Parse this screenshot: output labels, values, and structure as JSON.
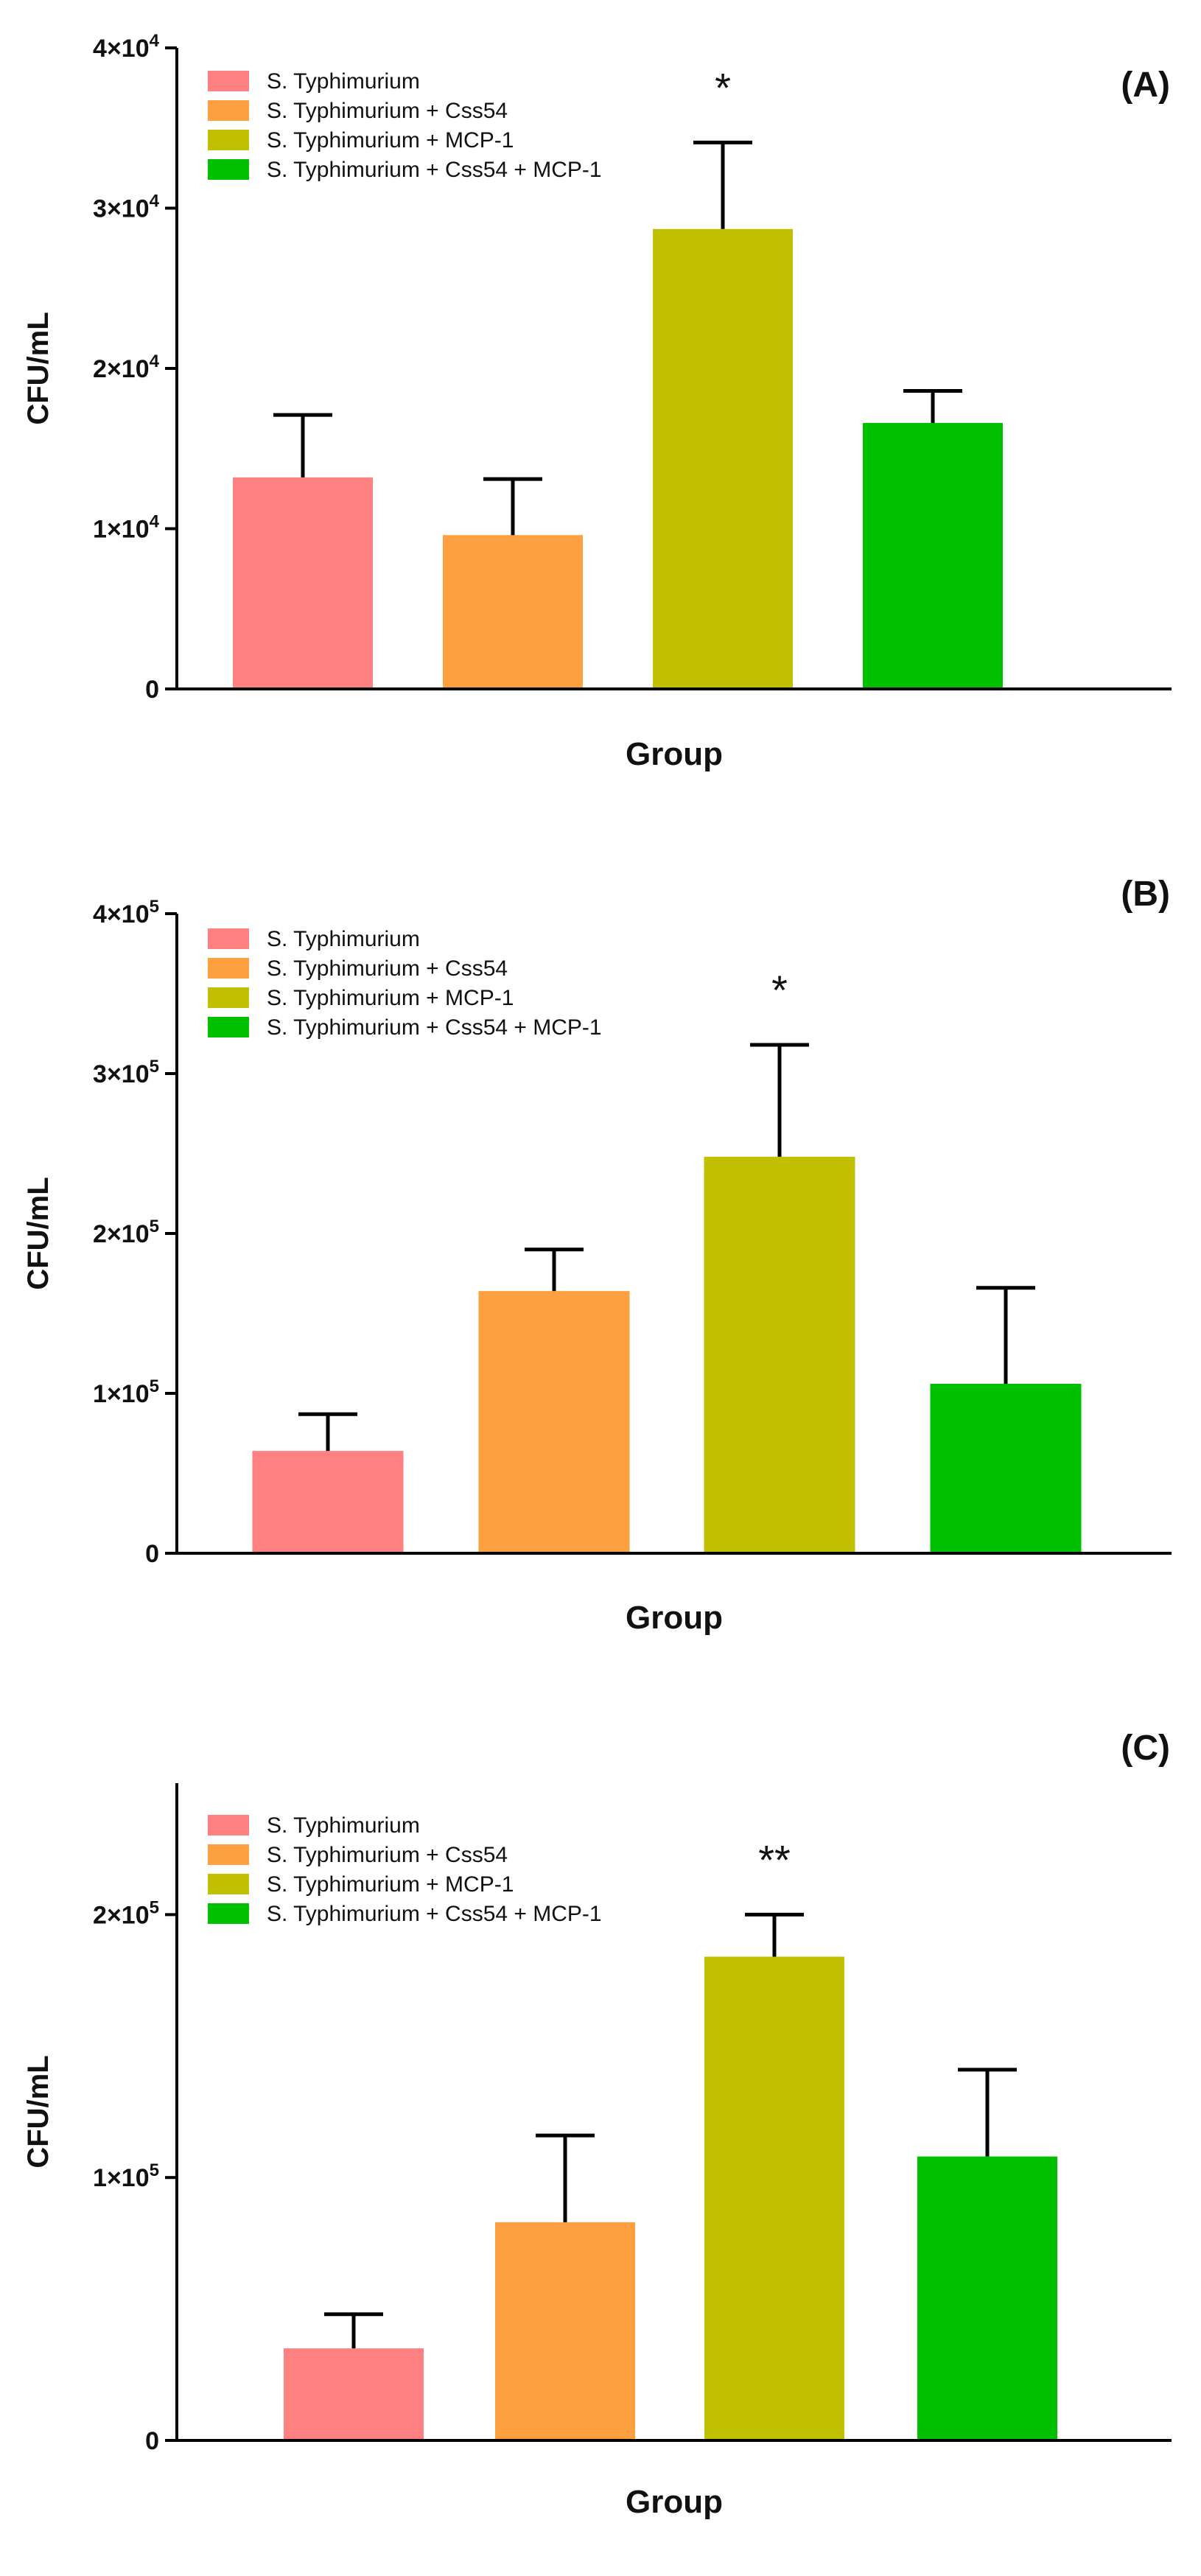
{
  "chart_data": [
    {
      "type": "bar",
      "panel_label": "(A)",
      "categories": [
        "S. Typhimurium",
        "S. Typhimurium + Css54",
        "S. Typhimurium + MCP-1",
        "S. Typhimurium + Css54 + MCP-1"
      ],
      "values": [
        13200,
        9600,
        28700,
        16600
      ],
      "errors": [
        3900,
        3500,
        5400,
        2000
      ],
      "significance": [
        "",
        "",
        "*",
        ""
      ],
      "colors": [
        "#ff8080",
        "#ffa040",
        "#c0c000",
        "#00c000"
      ],
      "xlabel": "Group",
      "ylabel": "CFU/mL",
      "ylim": [
        0,
        40000
      ],
      "y_ticks": [
        0,
        10000,
        20000,
        30000,
        40000
      ],
      "y_tick_mantissa": [
        "0",
        "1×10",
        "2×10",
        "3×10",
        "4×10"
      ],
      "y_tick_exponent": [
        "",
        "4",
        "4",
        "4",
        "4"
      ],
      "legend": [
        "S. Typhimurium",
        "S. Typhimurium + Css54",
        "S. Typhimurium + MCP-1",
        "S. Typhimurium + Css54 + MCP-1"
      ],
      "legend_position": "top-left",
      "grid": false
    },
    {
      "type": "bar",
      "panel_label": "(B)",
      "categories": [
        "S. Typhimurium",
        "S. Typhimurium + Css54",
        "S. Typhimurium + MCP-1",
        "S. Typhimurium + Css54 + MCP-1"
      ],
      "values": [
        64000,
        164000,
        248000,
        106000
      ],
      "errors": [
        23000,
        26000,
        70000,
        60000
      ],
      "significance": [
        "",
        "",
        "*",
        ""
      ],
      "colors": [
        "#ff8080",
        "#ffa040",
        "#c0c000",
        "#00c000"
      ],
      "xlabel": "Group",
      "ylabel": "CFU/mL",
      "ylim": [
        0,
        400000
      ],
      "y_ticks": [
        0,
        100000,
        200000,
        300000,
        400000
      ],
      "y_tick_mantissa": [
        "0",
        "1×10",
        "2×10",
        "3×10",
        "4×10"
      ],
      "y_tick_exponent": [
        "",
        "5",
        "5",
        "5",
        "5"
      ],
      "legend": [
        "S. Typhimurium",
        "S. Typhimurium + Css54",
        "S. Typhimurium + MCP-1",
        "S. Typhimurium + Css54 + MCP-1"
      ],
      "legend_position": "top-left",
      "grid": false
    },
    {
      "type": "bar",
      "panel_label": "(C)",
      "categories": [
        "S. Typhimurium",
        "S. Typhimurium + Css54",
        "S. Typhimurium + MCP-1",
        "S. Typhimurium + Css54 + MCP-1"
      ],
      "values": [
        35000,
        83000,
        184000,
        108000
      ],
      "errors": [
        13000,
        33000,
        16000,
        33000
      ],
      "significance": [
        "",
        "",
        "**",
        ""
      ],
      "colors": [
        "#ff8080",
        "#ffa040",
        "#c0c000",
        "#00c000"
      ],
      "xlabel": "Group",
      "ylabel": "CFU/mL",
      "ylim": [
        0,
        250000
      ],
      "y_ticks": [
        0,
        100000,
        200000
      ],
      "y_tick_mantissa": [
        "0",
        "1×10",
        "2×10"
      ],
      "y_tick_exponent": [
        "",
        "5",
        "5"
      ],
      "legend": [
        "S. Typhimurium",
        "S. Typhimurium + Css54",
        "S. Typhimurium + MCP-1",
        "S. Typhimurium + Css54 + MCP-1"
      ],
      "legend_position": "top-left",
      "grid": false
    }
  ]
}
